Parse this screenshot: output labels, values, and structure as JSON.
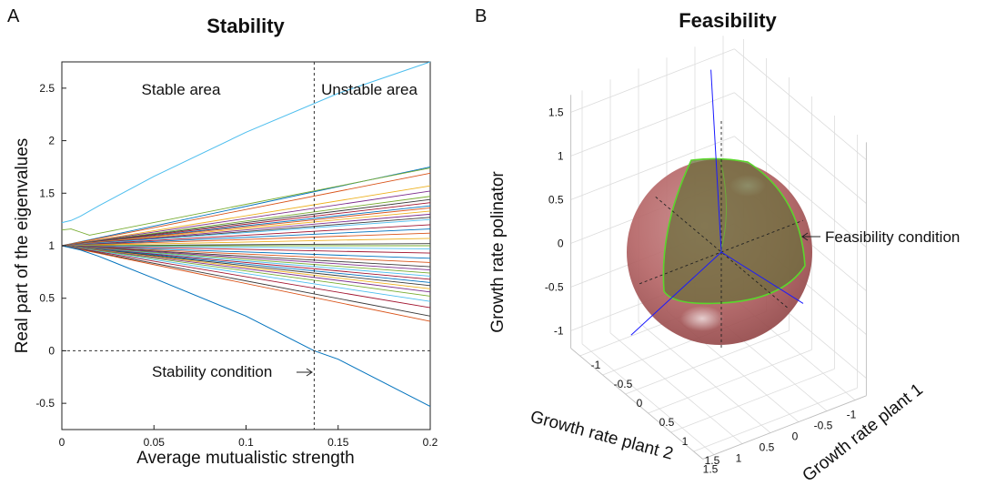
{
  "panel_a": {
    "letter": "A",
    "title": "Stability"
  },
  "panel_b": {
    "letter": "B",
    "title": "Feasibility"
  },
  "chart_data": [
    {
      "type": "line",
      "title": "Stability",
      "xlabel": "Average mutualistic strength",
      "ylabel": "Real part of the eigenvalues",
      "xlim": [
        0,
        0.2
      ],
      "ylim": [
        -0.75,
        2.75
      ],
      "x_ticks": [
        "0",
        "0.05",
        "0.1",
        "0.15",
        "0.2"
      ],
      "y_ticks": [
        "-0.5",
        "0",
        "0.5",
        "1",
        "1.5",
        "2",
        "2.5"
      ],
      "grid": false,
      "annotations": {
        "stable": "Stable area",
        "unstable": "Unstable area",
        "condition": "Stability condition",
        "critical_x": 0.137,
        "zero_line_y": 0
      },
      "series_colors": [
        "#0072bd",
        "#d95319",
        "#edb120",
        "#7e2f8e",
        "#77ac30",
        "#4dbeee",
        "#a2142f"
      ],
      "leading": {
        "x": [
          0,
          0.005,
          0.01,
          0.02,
          0.05,
          0.1,
          0.15,
          0.2
        ],
        "y": [
          1.22,
          1.24,
          1.28,
          1.38,
          1.66,
          2.08,
          2.45,
          2.8
        ],
        "color": "#4dbeee"
      },
      "trailing": {
        "x": [
          0,
          0.01,
          0.02,
          0.05,
          0.1,
          0.137,
          0.15,
          0.2
        ],
        "y": [
          1.0,
          0.96,
          0.9,
          0.69,
          0.33,
          0.0,
          -0.08,
          -0.53
        ],
        "color": "#0072bd"
      },
      "bulk_end_values": [
        1.75,
        1.69,
        1.57,
        1.52,
        1.47,
        1.44,
        1.41,
        1.38,
        1.36,
        1.33,
        1.3,
        1.27,
        1.25,
        1.2,
        1.16,
        1.12,
        1.07,
        1.02,
        1.0,
        0.97,
        0.93,
        0.88,
        0.84,
        0.8,
        0.77,
        0.74,
        0.71,
        0.68,
        0.65,
        0.62,
        0.59,
        0.56,
        0.52,
        0.47,
        0.41,
        0.33,
        0.28
      ],
      "bulk_start_value": 1.0,
      "bump_series": {
        "x": [
          0,
          0.005,
          0.01,
          0.015,
          0.2
        ],
        "y": [
          1.15,
          1.16,
          1.13,
          1.1,
          1.74
        ],
        "color": "#77ac30"
      }
    },
    {
      "type": "scatter",
      "subtype": "3d-sphere",
      "title": "Feasibility",
      "xlabel": "Growth rate plant 1",
      "ylabel": "Growth rate plant 2",
      "zlabel": "Growth rate polinator",
      "x_ticks": [
        "-1",
        "-0.5",
        "0",
        "0.5",
        "1",
        "1.5"
      ],
      "y_ticks": [
        "-1",
        "-0.5",
        "0",
        "0.5",
        "1",
        "1.5"
      ],
      "z_ticks": [
        "-1",
        "-0.5",
        "0",
        "0.5",
        "1",
        "1.5"
      ],
      "axis_range": [
        -1.2,
        1.7
      ],
      "sphere_radius": 1,
      "sphere_color": "#b56566",
      "feasible_region_color": "#6b6e3c",
      "boundary_color": "#5bd62c",
      "vector_color": "#1a1aff",
      "annotation": "Feasibility condition",
      "grid": true
    }
  ]
}
